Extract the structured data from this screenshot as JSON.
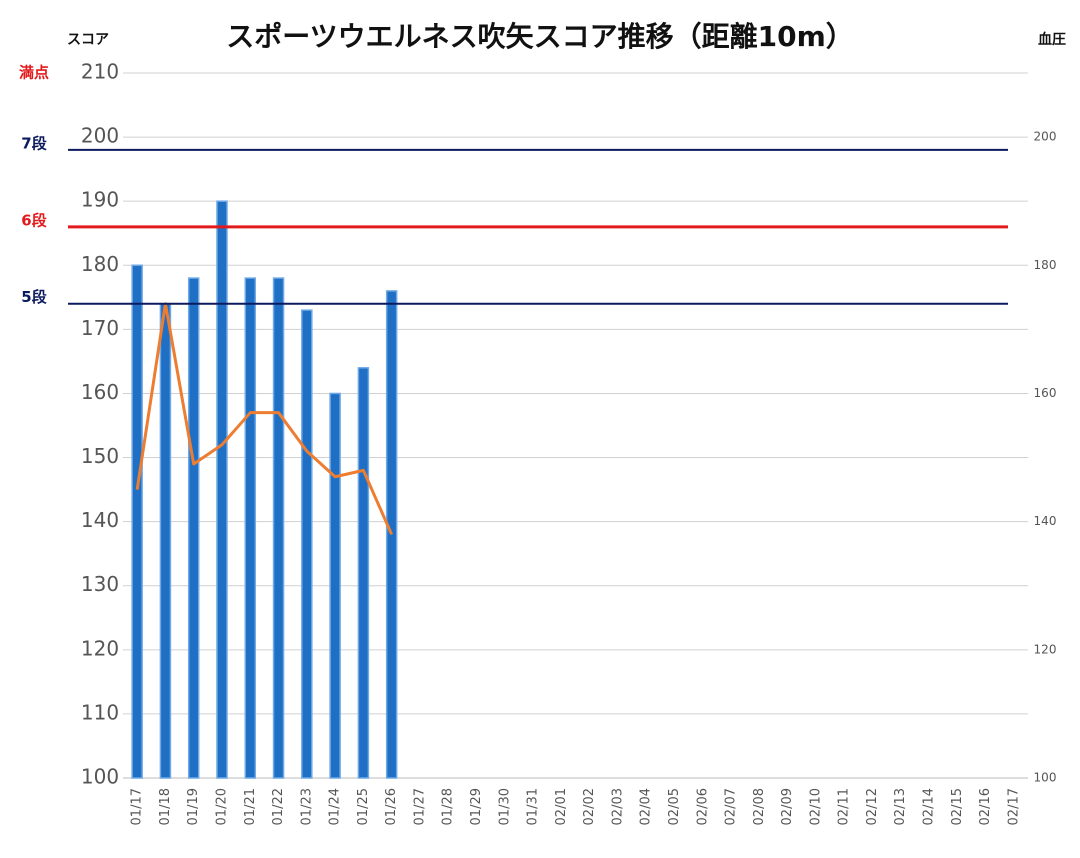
{
  "chart_data": {
    "type": "bar",
    "title": "スポーツウエルネス吹矢スコア推移（距離10m）",
    "y_label": "スコア",
    "y2_label": "血圧",
    "categories": [
      "01/17",
      "01/18",
      "01/19",
      "01/20",
      "01/21",
      "01/22",
      "01/23",
      "01/24",
      "01/25",
      "01/26",
      "01/27",
      "01/28",
      "01/29",
      "01/30",
      "01/31",
      "02/01",
      "02/02",
      "02/03",
      "02/04",
      "02/05",
      "02/06",
      "02/07",
      "02/08",
      "02/09",
      "02/10",
      "02/11",
      "02/12",
      "02/13",
      "02/14",
      "02/15",
      "02/16",
      "02/17"
    ],
    "series": [
      {
        "type": "bar",
        "color": "#1f6fc5",
        "values": [
          180,
          174,
          178,
          190,
          178,
          178,
          173,
          160,
          164,
          176,
          null,
          null,
          null,
          null,
          null,
          null,
          null,
          null,
          null,
          null,
          null,
          null,
          null,
          null,
          null,
          null,
          null,
          null,
          null,
          null,
          null,
          null
        ]
      },
      {
        "type": "line",
        "axis": "y2",
        "color": "#ed7d31",
        "values": [
          145,
          174,
          149,
          152,
          157,
          157,
          151,
          147,
          148,
          138,
          null,
          null,
          null,
          null,
          null,
          null,
          null,
          null,
          null,
          null,
          null,
          null,
          null,
          null,
          null,
          null,
          null,
          null,
          null,
          null,
          null,
          null
        ]
      }
    ],
    "ylim": [
      100,
      210
    ],
    "yticks": [
      100,
      110,
      120,
      130,
      140,
      150,
      160,
      170,
      180,
      190,
      200,
      210
    ],
    "y2lim": [
      100,
      210
    ],
    "y2ticks": [
      100,
      120,
      140,
      160,
      180,
      200
    ],
    "grid": true,
    "reference_lines": [
      {
        "label": "満点",
        "value": 210,
        "color": "#e31a1c",
        "show_line": false
      },
      {
        "label": "7段",
        "value": 198,
        "color": "#0d1b5e",
        "show_line": true
      },
      {
        "label": "6段",
        "value": 186,
        "color": "#e31a1c",
        "show_line": true
      },
      {
        "label": "5段",
        "value": 174,
        "color": "#0d1b5e",
        "show_line": true
      }
    ]
  }
}
